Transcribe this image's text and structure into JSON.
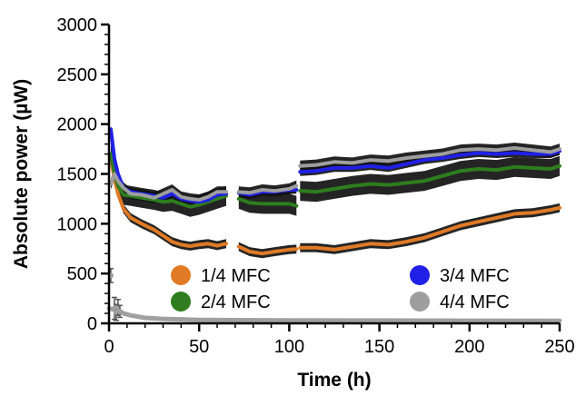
{
  "chart_data": {
    "type": "line",
    "title": "",
    "xlabel": "Time (h)",
    "ylabel": "Absolute power (µW)",
    "xlim": [
      0,
      250
    ],
    "ylim": [
      0,
      3000
    ],
    "x_ticks": [
      0,
      50,
      100,
      150,
      200,
      250
    ],
    "y_ticks": [
      0,
      500,
      1000,
      1500,
      2000,
      2500,
      3000
    ],
    "x_tick_labels": [
      "0",
      "50",
      "100",
      "150",
      "200",
      "250"
    ],
    "y_tick_labels": [
      "0",
      "500",
      "1000",
      "1500",
      "2000",
      "2500",
      "3000"
    ],
    "grid": false,
    "legend_position": "lower-center",
    "series": [
      {
        "name": "1/4 MFC",
        "color": "#e07a26",
        "error_band": 45,
        "segments": [
          [
            [
              1,
              1650
            ],
            [
              3,
              1450
            ],
            [
              5,
              1300
            ],
            [
              8,
              1150
            ],
            [
              12,
              1060
            ],
            [
              18,
              1000
            ],
            [
              25,
              940
            ],
            [
              30,
              880
            ],
            [
              35,
              820
            ],
            [
              40,
              790
            ],
            [
              45,
              775
            ],
            [
              50,
              790
            ],
            [
              55,
              800
            ],
            [
              60,
              780
            ],
            [
              65,
              800
            ]
          ],
          [
            [
              72,
              770
            ],
            [
              78,
              720
            ],
            [
              85,
              700
            ],
            [
              92,
              720
            ],
            [
              100,
              740
            ],
            [
              104,
              745
            ]
          ],
          [
            [
              106,
              760
            ],
            [
              115,
              760
            ],
            [
              125,
              740
            ],
            [
              135,
              770
            ],
            [
              145,
              800
            ],
            [
              155,
              790
            ],
            [
              165,
              820
            ],
            [
              175,
              860
            ],
            [
              185,
              920
            ],
            [
              195,
              980
            ],
            [
              205,
              1020
            ],
            [
              215,
              1060
            ],
            [
              225,
              1100
            ],
            [
              235,
              1110
            ],
            [
              245,
              1140
            ],
            [
              250,
              1160
            ]
          ]
        ]
      },
      {
        "name": "2/4 MFC",
        "color": "#2e7d1e",
        "error_band": 100,
        "segments": [
          [
            [
              1,
              1700
            ],
            [
              3,
              1500
            ],
            [
              5,
              1380
            ],
            [
              8,
              1290
            ],
            [
              12,
              1280
            ],
            [
              18,
              1260
            ],
            [
              25,
              1240
            ],
            [
              30,
              1220
            ],
            [
              35,
              1230
            ],
            [
              40,
              1200
            ],
            [
              45,
              1170
            ],
            [
              50,
              1190
            ],
            [
              55,
              1220
            ],
            [
              60,
              1250
            ],
            [
              65,
              1280
            ]
          ],
          [
            [
              72,
              1250
            ],
            [
              78,
              1210
            ],
            [
              85,
              1200
            ],
            [
              92,
              1200
            ],
            [
              100,
              1200
            ],
            [
              104,
              1180
            ]
          ],
          [
            [
              106,
              1330
            ],
            [
              115,
              1320
            ],
            [
              125,
              1350
            ],
            [
              135,
              1380
            ],
            [
              145,
              1400
            ],
            [
              155,
              1390
            ],
            [
              165,
              1410
            ],
            [
              175,
              1430
            ],
            [
              185,
              1480
            ],
            [
              195,
              1530
            ],
            [
              205,
              1550
            ],
            [
              215,
              1540
            ],
            [
              225,
              1570
            ],
            [
              235,
              1560
            ],
            [
              245,
              1550
            ],
            [
              250,
              1580
            ]
          ]
        ]
      },
      {
        "name": "3/4 MFC",
        "color": "#2020e6",
        "error_band": 40,
        "segments": [
          [
            [
              1,
              1950
            ],
            [
              3,
              1650
            ],
            [
              5,
              1500
            ],
            [
              8,
              1360
            ],
            [
              12,
              1320
            ],
            [
              18,
              1300
            ],
            [
              25,
              1280
            ],
            [
              30,
              1260
            ],
            [
              35,
              1300
            ],
            [
              40,
              1250
            ],
            [
              45,
              1230
            ],
            [
              50,
              1220
            ],
            [
              55,
              1240
            ],
            [
              60,
              1290
            ],
            [
              65,
              1300
            ]
          ],
          [
            [
              72,
              1310
            ],
            [
              78,
              1290
            ],
            [
              85,
              1320
            ],
            [
              92,
              1320
            ],
            [
              100,
              1340
            ],
            [
              104,
              1340
            ]
          ],
          [
            [
              106,
              1520
            ],
            [
              115,
              1530
            ],
            [
              125,
              1560
            ],
            [
              135,
              1560
            ],
            [
              145,
              1580
            ],
            [
              155,
              1560
            ],
            [
              165,
              1600
            ],
            [
              175,
              1640
            ],
            [
              185,
              1660
            ],
            [
              195,
              1690
            ],
            [
              205,
              1710
            ],
            [
              215,
              1700
            ],
            [
              225,
              1710
            ],
            [
              235,
              1700
            ],
            [
              245,
              1700
            ],
            [
              250,
              1730
            ]
          ]
        ]
      },
      {
        "name": "4/4 MFC",
        "color": "#9e9e9e",
        "error_band": 55,
        "segments": [
          [
            [
              1,
              1400
            ],
            [
              3,
              1500
            ],
            [
              5,
              1430
            ],
            [
              8,
              1360
            ],
            [
              12,
              1300
            ],
            [
              18,
              1290
            ],
            [
              25,
              1260
            ],
            [
              30,
              1300
            ],
            [
              35,
              1340
            ],
            [
              40,
              1270
            ],
            [
              45,
              1250
            ],
            [
              50,
              1240
            ],
            [
              55,
              1270
            ],
            [
              60,
              1320
            ],
            [
              65,
              1320
            ]
          ],
          [
            [
              72,
              1320
            ],
            [
              78,
              1310
            ],
            [
              85,
              1340
            ],
            [
              92,
              1330
            ],
            [
              100,
              1350
            ],
            [
              104,
              1380
            ]
          ],
          [
            [
              106,
              1580
            ],
            [
              115,
              1590
            ],
            [
              125,
              1620
            ],
            [
              135,
              1610
            ],
            [
              145,
              1640
            ],
            [
              155,
              1630
            ],
            [
              165,
              1660
            ],
            [
              175,
              1680
            ],
            [
              185,
              1700
            ],
            [
              195,
              1740
            ],
            [
              205,
              1750
            ],
            [
              215,
              1740
            ],
            [
              225,
              1760
            ],
            [
              235,
              1740
            ],
            [
              245,
              1720
            ],
            [
              250,
              1750
            ]
          ]
        ]
      }
    ],
    "baseline_series": {
      "color": "#a0a0a0",
      "points": [
        [
          0,
          150
        ],
        [
          2,
          140
        ],
        [
          4,
          130
        ],
        [
          6,
          120
        ],
        [
          8,
          100
        ],
        [
          12,
          80
        ],
        [
          20,
          55
        ],
        [
          30,
          45
        ],
        [
          40,
          40
        ],
        [
          50,
          35
        ],
        [
          60,
          33
        ],
        [
          70,
          32
        ],
        [
          100,
          30
        ],
        [
          150,
          28
        ],
        [
          200,
          26
        ],
        [
          250,
          25
        ]
      ],
      "error_bars": [
        [
          1,
          480,
          70
        ],
        [
          3,
          150,
          110
        ],
        [
          4,
          110,
          80
        ],
        [
          5,
          160,
          80
        ],
        [
          6,
          120,
          60
        ]
      ]
    }
  }
}
